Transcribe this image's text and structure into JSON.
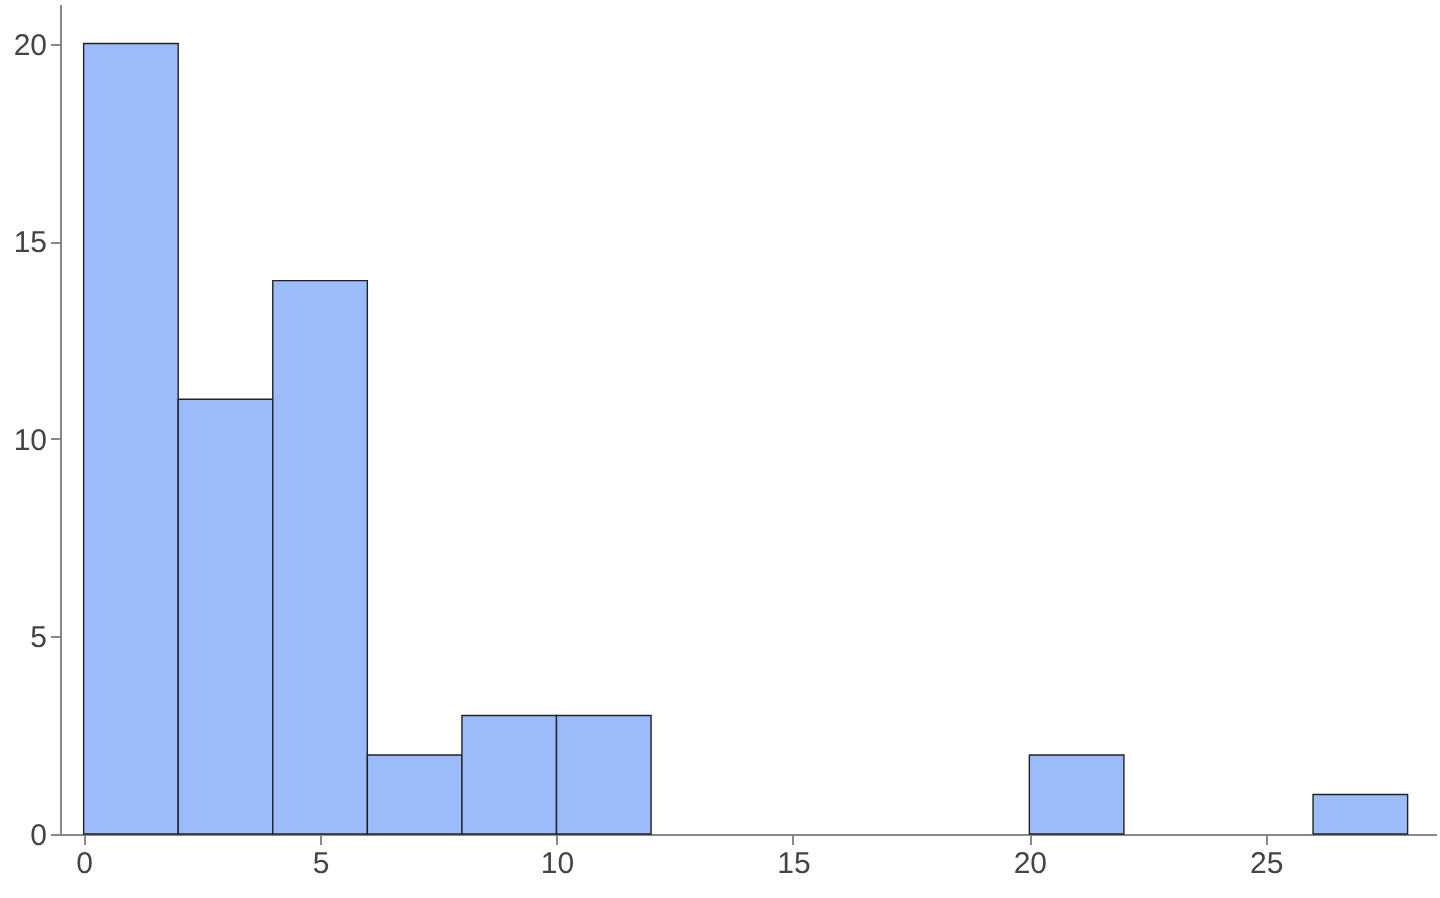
{
  "chart_data": {
    "type": "histogram",
    "bins": [
      0,
      2,
      4,
      6,
      8,
      10,
      12,
      14,
      16,
      18,
      20,
      22,
      24,
      26,
      28
    ],
    "values": [
      20,
      11,
      14,
      2,
      3,
      3,
      0,
      0,
      0,
      0,
      2,
      0,
      0,
      1
    ],
    "color": "#9bbbfa",
    "xlim": [
      -0.5,
      28.6
    ],
    "xticks": [
      0,
      5,
      10,
      15,
      20,
      25
    ],
    "ylim": [
      0,
      21
    ],
    "yticks": [
      0,
      5,
      10,
      15,
      20
    ],
    "grid": false
  }
}
